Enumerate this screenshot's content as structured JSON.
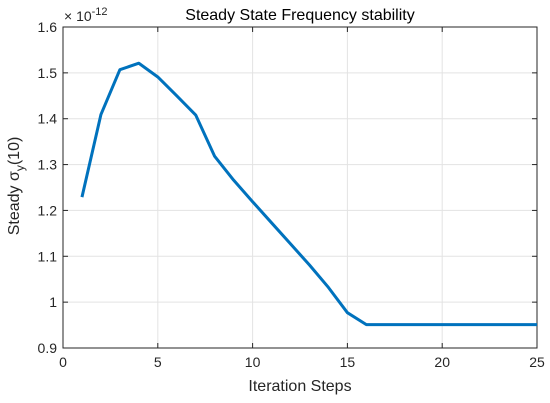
{
  "chart_data": {
    "type": "line",
    "title": "Steady State Frequency stability",
    "xlabel": "Iteration Steps",
    "ylabel": "Steady σ",
    "ylabel_subscript": "y",
    "ylabel_suffix": "(10)",
    "y_exponent_base": "× 10",
    "y_exponent": "-12",
    "xlim": [
      0,
      25
    ],
    "ylim": [
      0.9,
      1.6
    ],
    "xticks": [
      0,
      5,
      10,
      15,
      20,
      25
    ],
    "yticks": [
      0.9,
      1,
      1.1,
      1.2,
      1.3,
      1.4,
      1.5,
      1.6
    ],
    "xtick_labels": [
      "0",
      "5",
      "10",
      "15",
      "20",
      "25"
    ],
    "ytick_labels": [
      "0.9",
      "1",
      "1.1",
      "1.2",
      "1.3",
      "1.4",
      "1.5",
      "1.6"
    ],
    "grid": true,
    "series": [
      {
        "color": "#0072BD",
        "x": [
          1,
          2,
          3,
          4,
          5,
          6,
          7,
          8,
          9,
          10,
          11,
          12,
          13,
          14,
          15,
          16,
          17,
          18,
          19,
          20,
          21,
          22,
          23,
          24,
          25
        ],
        "y": [
          1.229,
          1.409,
          1.507,
          1.521,
          1.491,
          1.45,
          1.408,
          1.318,
          1.266,
          1.219,
          1.173,
          1.127,
          1.081,
          1.032,
          0.977,
          0.951,
          0.951,
          0.951,
          0.951,
          0.951,
          0.951,
          0.951,
          0.951,
          0.951,
          0.951
        ]
      }
    ]
  }
}
